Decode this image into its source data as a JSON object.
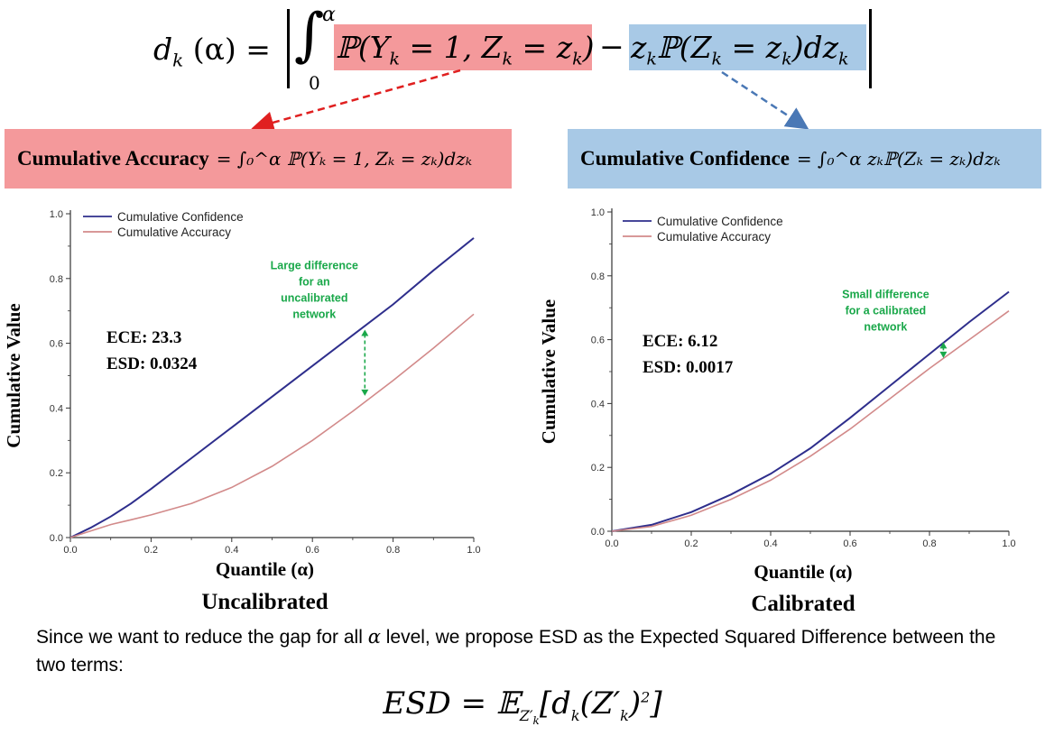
{
  "top_equation": {
    "lhs": "d",
    "lhs_sub": "k",
    "lhs_arg": "(α) =",
    "upper_limit": "α",
    "lower_limit": "0",
    "accuracy_term": "ℙ(Y",
    "accuracy_term_mid": " = 1, Z",
    "accuracy_term_end": " = z",
    "accuracy_term_close": ")",
    "minus": "−",
    "confidence_term": "z",
    "confidence_term_mid": "ℙ(Z",
    "confidence_term_end": " = z",
    "confidence_term_close": ")dz",
    "sub_k": "k",
    "red_color": "#f4999b",
    "blue_color": "#a8c9e6"
  },
  "definitions": {
    "accuracy_label": "Cumulative Accuracy",
    "accuracy_formula": "= ∫₀^α ℙ(Yₖ = 1, Zₖ = zₖ)dzₖ",
    "confidence_label": "Cumulative Confidence",
    "confidence_formula": "= ∫₀^α zₖℙ(Zₖ = zₖ)dzₖ"
  },
  "chart_data": [
    {
      "type": "line",
      "title": "Uncalibrated",
      "xlabel": "Quantile (α)",
      "ylabel": "Cumulative Value",
      "xlim": [
        0,
        1
      ],
      "ylim": [
        0,
        1
      ],
      "xticks": [
        "0.0",
        "0.2",
        "0.4",
        "0.6",
        "0.8",
        "1.0"
      ],
      "yticks": [
        "0.0",
        "0.2",
        "0.4",
        "0.6",
        "0.8",
        "1.0"
      ],
      "legend_position": "top-left",
      "series": [
        {
          "name": "Cumulative Confidence",
          "color": "#2e2e8c",
          "x": [
            0,
            0.05,
            0.1,
            0.15,
            0.2,
            0.3,
            0.4,
            0.5,
            0.6,
            0.7,
            0.8,
            0.9,
            1.0
          ],
          "y": [
            0,
            0.03,
            0.065,
            0.105,
            0.15,
            0.245,
            0.34,
            0.435,
            0.53,
            0.625,
            0.72,
            0.825,
            0.925
          ]
        },
        {
          "name": "Cumulative Accuracy",
          "color": "#d28a8a",
          "x": [
            0,
            0.05,
            0.1,
            0.15,
            0.2,
            0.3,
            0.4,
            0.5,
            0.6,
            0.7,
            0.8,
            0.9,
            1.0
          ],
          "y": [
            0,
            0.02,
            0.04,
            0.055,
            0.07,
            0.105,
            0.155,
            0.22,
            0.3,
            0.39,
            0.485,
            0.585,
            0.69
          ]
        }
      ],
      "stats": {
        "ece": "ECE: 23.3",
        "esd": "ESD: 0.0324"
      },
      "annotation": {
        "lines": [
          "Large difference",
          "for an",
          "uncalibrated",
          "network"
        ],
        "x": 0.73,
        "y_top": 0.645,
        "y_bottom": 0.435
      }
    },
    {
      "type": "line",
      "title": "Calibrated",
      "xlabel": "Quantile (α)",
      "ylabel": "Cumulative Value",
      "xlim": [
        0,
        1
      ],
      "ylim": [
        0,
        1
      ],
      "xticks": [
        "0.0",
        "0.2",
        "0.4",
        "0.6",
        "0.8",
        "1.0"
      ],
      "yticks": [
        "0.0",
        "0.2",
        "0.4",
        "0.6",
        "0.8",
        "1.0"
      ],
      "legend_position": "top-left",
      "series": [
        {
          "name": "Cumulative Confidence",
          "color": "#2e2e8c",
          "x": [
            0,
            0.1,
            0.2,
            0.3,
            0.4,
            0.5,
            0.6,
            0.7,
            0.8,
            0.9,
            1.0
          ],
          "y": [
            0,
            0.02,
            0.06,
            0.115,
            0.18,
            0.26,
            0.355,
            0.455,
            0.555,
            0.655,
            0.75
          ]
        },
        {
          "name": "Cumulative Accuracy",
          "color": "#d28a8a",
          "x": [
            0,
            0.1,
            0.2,
            0.3,
            0.4,
            0.5,
            0.6,
            0.7,
            0.8,
            0.9,
            1.0
          ],
          "y": [
            0,
            0.015,
            0.05,
            0.1,
            0.16,
            0.235,
            0.32,
            0.415,
            0.51,
            0.6,
            0.69
          ]
        }
      ],
      "stats": {
        "ece": "ECE: 6.12",
        "esd": "ESD: 0.0017"
      },
      "annotation": {
        "lines": [
          "Small difference",
          "for a calibrated",
          "network"
        ],
        "x": 0.835,
        "y_top": 0.595,
        "y_bottom": 0.54
      }
    }
  ],
  "bottom": {
    "text_before_alpha": "Since we want to reduce the gap for all ",
    "alpha": "α",
    "text_after_alpha": " level, we propose ESD as the Expected Squared Difference between the two terms:",
    "esd_lhs": "ESD = 𝔼",
    "esd_sub": "Z′",
    "esd_sub_k": "k",
    "esd_rhs": "[d",
    "esd_rhs_k": "k",
    "esd_rhs_arg": "(Z′",
    "esd_rhs_arg_k": "k",
    "esd_rhs_end": ")",
    "esd_sup": "2",
    "esd_close": "]"
  }
}
